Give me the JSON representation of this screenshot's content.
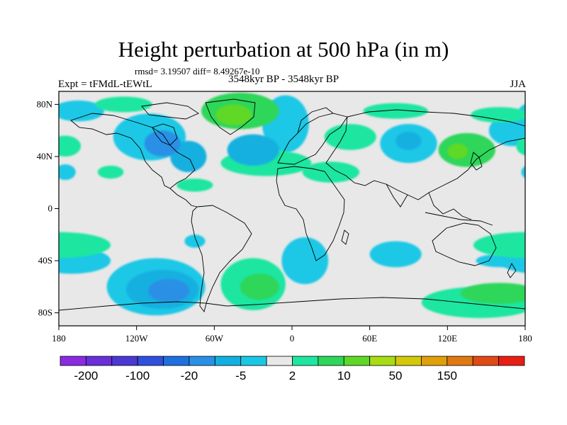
{
  "header": {
    "title": "Height perturbation at 500 hPa (in m)",
    "stats": "rmsd= 3.19507 diff= 8.49267e-10",
    "experiment": "Expt = tFMdL-tEWtL",
    "period": "3548kyr BP - 3548kyr BP",
    "season": "JJA"
  },
  "axes": {
    "lat_ticks": [
      {
        "value": 80,
        "label": "80N"
      },
      {
        "value": 40,
        "label": "40N"
      },
      {
        "value": 0,
        "label": "0"
      },
      {
        "value": -40,
        "label": "40S"
      },
      {
        "value": -80,
        "label": "80S"
      }
    ],
    "lon_ticks": [
      {
        "value": -180,
        "label": "180"
      },
      {
        "value": -120,
        "label": "120W"
      },
      {
        "value": -60,
        "label": "60W"
      },
      {
        "value": 0,
        "label": "0"
      },
      {
        "value": 60,
        "label": "60E"
      },
      {
        "value": 120,
        "label": "120E"
      },
      {
        "value": 180,
        "label": "180"
      }
    ],
    "lat_range": [
      -90,
      90
    ],
    "lon_range": [
      -180,
      180
    ]
  },
  "colorbar": {
    "colors": [
      "#8a2be2",
      "#6a2fd8",
      "#4b38d4",
      "#2f4fdc",
      "#1e70e0",
      "#2a90e6",
      "#12b0e0",
      "#1ac8e6",
      "#e8e8e8",
      "#1ee6a0",
      "#2ed65a",
      "#5ed828",
      "#a8dc14",
      "#d4c80a",
      "#e0a00a",
      "#e07a10",
      "#e04a14",
      "#e81e14"
    ],
    "labels": [
      {
        "boundary": 1,
        "text": "-200"
      },
      {
        "boundary": 3,
        "text": "-100"
      },
      {
        "boundary": 5,
        "text": "-20"
      },
      {
        "boundary": 7,
        "text": "-5"
      },
      {
        "boundary": 9,
        "text": "2"
      },
      {
        "boundary": 11,
        "text": "10"
      },
      {
        "boundary": 13,
        "text": "50"
      },
      {
        "boundary": 15,
        "text": "150"
      }
    ]
  },
  "map_colors": {
    "ocean_land_neutral": "#e8e8e8",
    "pos_light": "#1ee6a0",
    "pos_mid": "#2ed65a",
    "pos_strong": "#5ed828",
    "neg_light": "#1ac8e6",
    "neg_mid": "#12b0e0",
    "neg_strong": "#2a90e6",
    "coast": "#000000"
  },
  "anomalies": [
    {
      "lon": -165,
      "lat": 75,
      "rx": 20,
      "ry": 8,
      "level": "neg_light"
    },
    {
      "lon": -110,
      "lat": 55,
      "rx": 28,
      "ry": 18,
      "level": "neg_light"
    },
    {
      "lon": -100,
      "lat": 50,
      "rx": 14,
      "ry": 10,
      "level": "neg_strong"
    },
    {
      "lon": -80,
      "lat": 40,
      "rx": 14,
      "ry": 12,
      "level": "neg_mid"
    },
    {
      "lon": -130,
      "lat": 80,
      "rx": 22,
      "ry": 6,
      "level": "pos_light"
    },
    {
      "lon": -40,
      "lat": 75,
      "rx": 30,
      "ry": 14,
      "level": "pos_mid"
    },
    {
      "lon": -45,
      "lat": 72,
      "rx": 14,
      "ry": 8,
      "level": "pos_strong"
    },
    {
      "lon": -175,
      "lat": 48,
      "rx": 12,
      "ry": 8,
      "level": "pos_light"
    },
    {
      "lon": -175,
      "lat": 28,
      "rx": 8,
      "ry": 6,
      "level": "neg_light"
    },
    {
      "lon": -140,
      "lat": 28,
      "rx": 10,
      "ry": 5,
      "level": "pos_light"
    },
    {
      "lon": -75,
      "lat": 18,
      "rx": 14,
      "ry": 5,
      "level": "pos_light"
    },
    {
      "lon": -5,
      "lat": 65,
      "rx": 18,
      "ry": 22,
      "level": "neg_light"
    },
    {
      "lon": -30,
      "lat": 45,
      "rx": 20,
      "ry": 12,
      "level": "neg_mid"
    },
    {
      "lon": -20,
      "lat": 35,
      "rx": 35,
      "ry": 10,
      "level": "pos_light"
    },
    {
      "lon": 45,
      "lat": 55,
      "rx": 20,
      "ry": 10,
      "level": "pos_light"
    },
    {
      "lon": 90,
      "lat": 50,
      "rx": 22,
      "ry": 15,
      "level": "neg_light"
    },
    {
      "lon": 90,
      "lat": 52,
      "rx": 10,
      "ry": 7,
      "level": "neg_mid"
    },
    {
      "lon": 135,
      "lat": 45,
      "rx": 22,
      "ry": 13,
      "level": "pos_mid"
    },
    {
      "lon": 128,
      "lat": 44,
      "rx": 8,
      "ry": 6,
      "level": "pos_strong"
    },
    {
      "lon": 170,
      "lat": 60,
      "rx": 18,
      "ry": 12,
      "level": "neg_light"
    },
    {
      "lon": 160,
      "lat": 72,
      "rx": 22,
      "ry": 6,
      "level": "pos_light"
    },
    {
      "lon": 30,
      "lat": 28,
      "rx": 22,
      "ry": 8,
      "level": "pos_light"
    },
    {
      "lon": 80,
      "lat": 75,
      "rx": 25,
      "ry": 6,
      "level": "pos_light"
    },
    {
      "lon": -180,
      "lat": -28,
      "rx": 40,
      "ry": 10,
      "level": "pos_light"
    },
    {
      "lon": -170,
      "lat": -40,
      "rx": 30,
      "ry": 10,
      "level": "neg_light"
    },
    {
      "lon": -105,
      "lat": -60,
      "rx": 38,
      "ry": 22,
      "level": "neg_light"
    },
    {
      "lon": -100,
      "lat": -62,
      "rx": 28,
      "ry": 15,
      "level": "neg_mid"
    },
    {
      "lon": -95,
      "lat": -63,
      "rx": 16,
      "ry": 9,
      "level": "neg_strong"
    },
    {
      "lon": -75,
      "lat": -25,
      "rx": 8,
      "ry": 5,
      "level": "neg_light"
    },
    {
      "lon": -30,
      "lat": -58,
      "rx": 25,
      "ry": 20,
      "level": "pos_light"
    },
    {
      "lon": -25,
      "lat": -60,
      "rx": 15,
      "ry": 10,
      "level": "pos_mid"
    },
    {
      "lon": 10,
      "lat": -40,
      "rx": 18,
      "ry": 18,
      "level": "neg_light"
    },
    {
      "lon": 80,
      "lat": -35,
      "rx": 20,
      "ry": 10,
      "level": "neg_light"
    },
    {
      "lon": 145,
      "lat": -72,
      "rx": 45,
      "ry": 12,
      "level": "pos_light"
    },
    {
      "lon": 160,
      "lat": -65,
      "rx": 30,
      "ry": 8,
      "level": "pos_mid"
    },
    {
      "lon": 160,
      "lat": -40,
      "rx": 18,
      "ry": 5,
      "level": "neg_light"
    }
  ]
}
